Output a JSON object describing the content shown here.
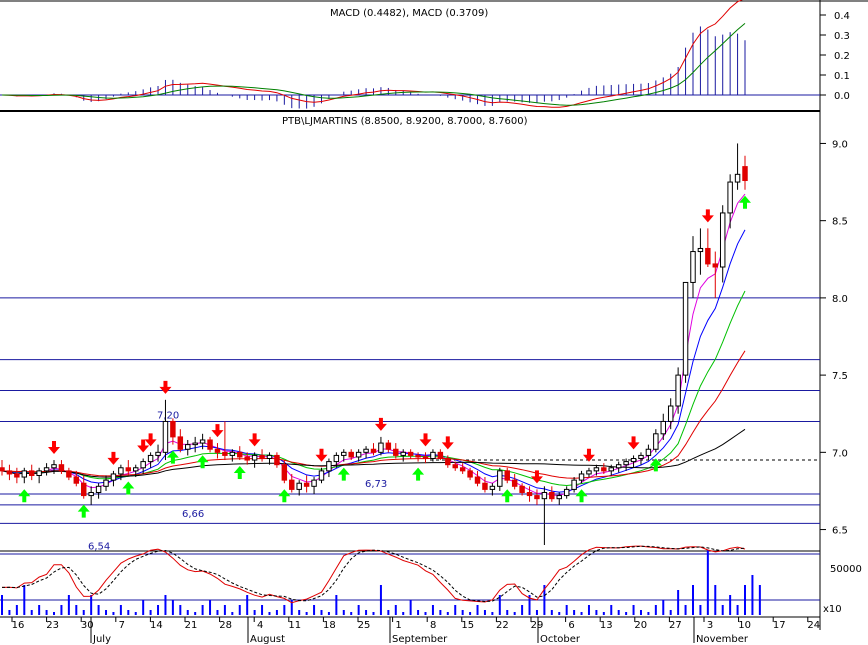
{
  "chart_data": {
    "type": "candlestick",
    "title": "PTB\\LJMARTINS (8.8500, 8.9200, 8.7000, 8.7600)",
    "macd_title": "MACD (0.4482), MACD (0.3709)",
    "price_axis": {
      "min": 6.4,
      "max": 9.1,
      "ticks": [
        "6.5",
        "7.0",
        "7.5",
        "8.0",
        "8.5",
        "9.0"
      ]
    },
    "macd_axis": {
      "min": -0.05,
      "max": 0.45,
      "ticks": [
        "0.0",
        "0.1",
        "0.2",
        "0.3",
        "0.4"
      ]
    },
    "volume_axis": {
      "ticks": [
        "50000"
      ],
      "multiplier": "x10"
    },
    "horizontal_levels": [
      8.0,
      7.6,
      7.4,
      7.2,
      6.73,
      6.66,
      6.54
    ],
    "level_labels": [
      {
        "text": "7,20",
        "price": 7.2
      },
      {
        "text": "6,66",
        "price": 6.66
      },
      {
        "text": "6,73",
        "price": 6.73
      },
      {
        "text": "6,54",
        "price": 6.54
      }
    ],
    "dotted_level": 6.95,
    "x_labels": [
      "16",
      "23",
      "30",
      "7",
      "14",
      "21",
      "28",
      "4",
      "11",
      "18",
      "25",
      "1",
      "8",
      "15",
      "22",
      "29",
      "6",
      "13",
      "20",
      "27",
      "3",
      "10",
      "17",
      "24"
    ],
    "months": [
      "July",
      "August",
      "September",
      "October",
      "November"
    ],
    "candles": [
      [
        6.9,
        6.95,
        6.85,
        6.88
      ],
      [
        6.88,
        6.92,
        6.82,
        6.86
      ],
      [
        6.86,
        6.9,
        6.8,
        6.84
      ],
      [
        6.84,
        6.9,
        6.8,
        6.88
      ],
      [
        6.88,
        6.92,
        6.82,
        6.85
      ],
      [
        6.85,
        6.9,
        6.8,
        6.88
      ],
      [
        6.88,
        6.93,
        6.85,
        6.9
      ],
      [
        6.9,
        6.95,
        6.86,
        6.92
      ],
      [
        6.92,
        6.95,
        6.86,
        6.88
      ],
      [
        6.88,
        6.9,
        6.82,
        6.84
      ],
      [
        6.84,
        6.88,
        6.78,
        6.8
      ],
      [
        6.8,
        6.85,
        6.7,
        6.72
      ],
      [
        6.72,
        6.78,
        6.66,
        6.74
      ],
      [
        6.74,
        6.8,
        6.7,
        6.78
      ],
      [
        6.78,
        6.85,
        6.75,
        6.82
      ],
      [
        6.82,
        6.88,
        6.78,
        6.86
      ],
      [
        6.86,
        6.92,
        6.82,
        6.9
      ],
      [
        6.9,
        6.95,
        6.85,
        6.88
      ],
      [
        6.88,
        6.92,
        6.84,
        6.9
      ],
      [
        6.9,
        6.96,
        6.86,
        6.94
      ],
      [
        6.94,
        7.0,
        6.9,
        6.98
      ],
      [
        6.98,
        7.05,
        6.94,
        7.0
      ],
      [
        7.0,
        7.34,
        6.95,
        7.2
      ],
      [
        7.2,
        7.22,
        7.05,
        7.1
      ],
      [
        7.1,
        7.15,
        7.0,
        7.02
      ],
      [
        7.02,
        7.08,
        6.98,
        7.05
      ],
      [
        7.05,
        7.1,
        7.0,
        7.06
      ],
      [
        7.06,
        7.12,
        7.02,
        7.08
      ],
      [
        7.08,
        7.1,
        7.0,
        7.02
      ],
      [
        7.02,
        7.06,
        6.96,
        7.0
      ],
      [
        7.0,
        7.2,
        6.95,
        6.98
      ],
      [
        6.98,
        7.02,
        6.94,
        7.0
      ],
      [
        7.0,
        7.04,
        6.95,
        6.97
      ],
      [
        6.97,
        7.0,
        6.92,
        6.95
      ],
      [
        6.95,
        7.0,
        6.9,
        6.98
      ],
      [
        6.98,
        7.02,
        6.94,
        6.96
      ],
      [
        6.96,
        7.0,
        6.92,
        6.98
      ],
      [
        6.98,
        7.0,
        6.9,
        6.92
      ],
      [
        6.92,
        6.95,
        6.8,
        6.82
      ],
      [
        6.82,
        6.86,
        6.74,
        6.76
      ],
      [
        6.76,
        6.82,
        6.72,
        6.8
      ],
      [
        6.8,
        6.85,
        6.74,
        6.78
      ],
      [
        6.78,
        6.84,
        6.73,
        6.82
      ],
      [
        6.82,
        6.9,
        6.8,
        6.88
      ],
      [
        6.88,
        6.96,
        6.84,
        6.94
      ],
      [
        6.94,
        7.0,
        6.9,
        6.98
      ],
      [
        6.98,
        7.02,
        6.94,
        7.0
      ],
      [
        7.0,
        7.02,
        6.95,
        6.97
      ],
      [
        6.97,
        7.02,
        6.94,
        7.0
      ],
      [
        7.0,
        7.04,
        6.96,
        7.02
      ],
      [
        7.02,
        7.06,
        6.98,
        7.0
      ],
      [
        7.0,
        7.1,
        6.98,
        7.06
      ],
      [
        7.06,
        7.08,
        7.0,
        7.02
      ],
      [
        7.02,
        7.06,
        6.96,
        6.98
      ],
      [
        6.98,
        7.02,
        6.94,
        7.0
      ],
      [
        7.0,
        7.02,
        6.96,
        6.98
      ],
      [
        6.98,
        7.0,
        6.94,
        6.97
      ],
      [
        6.97,
        7.0,
        6.93,
        6.96
      ],
      [
        6.96,
        7.02,
        6.94,
        7.0
      ],
      [
        7.0,
        7.02,
        6.95,
        6.96
      ],
      [
        6.96,
        6.98,
        6.9,
        6.92
      ],
      [
        6.92,
        6.94,
        6.88,
        6.9
      ],
      [
        6.9,
        6.93,
        6.86,
        6.88
      ],
      [
        6.88,
        6.9,
        6.82,
        6.84
      ],
      [
        6.84,
        6.88,
        6.78,
        6.8
      ],
      [
        6.8,
        6.84,
        6.74,
        6.76
      ],
      [
        6.76,
        6.8,
        6.72,
        6.78
      ],
      [
        6.78,
        6.9,
        6.75,
        6.88
      ],
      [
        6.88,
        6.9,
        6.8,
        6.82
      ],
      [
        6.82,
        6.86,
        6.76,
        6.78
      ],
      [
        6.78,
        6.8,
        6.72,
        6.74
      ],
      [
        6.74,
        6.78,
        6.68,
        6.72
      ],
      [
        6.72,
        6.76,
        6.66,
        6.7
      ],
      [
        6.7,
        6.78,
        6.4,
        6.74
      ],
      [
        6.74,
        6.78,
        6.68,
        6.7
      ],
      [
        6.7,
        6.74,
        6.66,
        6.72
      ],
      [
        6.72,
        6.78,
        6.7,
        6.76
      ],
      [
        6.76,
        6.84,
        6.74,
        6.82
      ],
      [
        6.82,
        6.88,
        6.8,
        6.86
      ],
      [
        6.86,
        6.9,
        6.84,
        6.88
      ],
      [
        6.88,
        6.92,
        6.85,
        6.9
      ],
      [
        6.9,
        6.93,
        6.86,
        6.88
      ],
      [
        6.88,
        6.92,
        6.85,
        6.9
      ],
      [
        6.9,
        6.94,
        6.87,
        6.92
      ],
      [
        6.92,
        6.96,
        6.88,
        6.94
      ],
      [
        6.94,
        6.98,
        6.9,
        6.96
      ],
      [
        6.96,
        7.0,
        6.92,
        6.98
      ],
      [
        6.98,
        7.05,
        6.95,
        7.02
      ],
      [
        7.02,
        7.15,
        7.0,
        7.12
      ],
      [
        7.12,
        7.25,
        7.08,
        7.2
      ],
      [
        7.2,
        7.35,
        7.15,
        7.3
      ],
      [
        7.3,
        7.55,
        7.25,
        7.5
      ],
      [
        7.5,
        8.1,
        7.45,
        8.1
      ],
      [
        8.1,
        8.4,
        8.0,
        8.3
      ],
      [
        8.3,
        8.45,
        8.15,
        8.32
      ],
      [
        8.32,
        8.45,
        8.2,
        8.22
      ],
      [
        8.22,
        8.3,
        8.0,
        8.2
      ],
      [
        8.2,
        8.6,
        8.1,
        8.55
      ],
      [
        8.55,
        8.8,
        8.45,
        8.75
      ],
      [
        8.75,
        9.0,
        8.7,
        8.8
      ],
      [
        8.85,
        8.92,
        8.7,
        8.76
      ]
    ],
    "volume": [
      2,
      0.5,
      1,
      3,
      0.5,
      1,
      0.5,
      0.3,
      1,
      2,
      1,
      0.5,
      2,
      1,
      0.5,
      0.3,
      1,
      0.5,
      0.3,
      1.5,
      0.5,
      1,
      2,
      1.5,
      1,
      0.5,
      0.3,
      1,
      1.5,
      0.5,
      1,
      0.3,
      1,
      2,
      0.5,
      1,
      0.3,
      0.5,
      1,
      1.5,
      0.5,
      0.3,
      1,
      0.5,
      0.3,
      2,
      0.5,
      0.3,
      1,
      0.5,
      0.3,
      3,
      0.5,
      1,
      0.3,
      1.5,
      0.5,
      0.3,
      1,
      0.5,
      0.3,
      1,
      0.5,
      0.3,
      1,
      0.5,
      0.3,
      2,
      0.5,
      0.3,
      1,
      2,
      0.5,
      3,
      0.5,
      0.3,
      1,
      0.5,
      0.3,
      1,
      0.5,
      0.3,
      1,
      0.5,
      0.3,
      1,
      0.5,
      0.3,
      1,
      1.5,
      0.5,
      2.5,
      1,
      3,
      1,
      6.5,
      3,
      1,
      2,
      1,
      3,
      4,
      3
    ],
    "up_arrows": [
      3,
      11,
      17,
      23,
      27,
      32,
      38,
      46,
      56,
      68,
      78,
      88,
      100
    ],
    "down_arrows": [
      7,
      15,
      19,
      20,
      22,
      29,
      34,
      43,
      51,
      57,
      60,
      72,
      79,
      85,
      95
    ]
  }
}
